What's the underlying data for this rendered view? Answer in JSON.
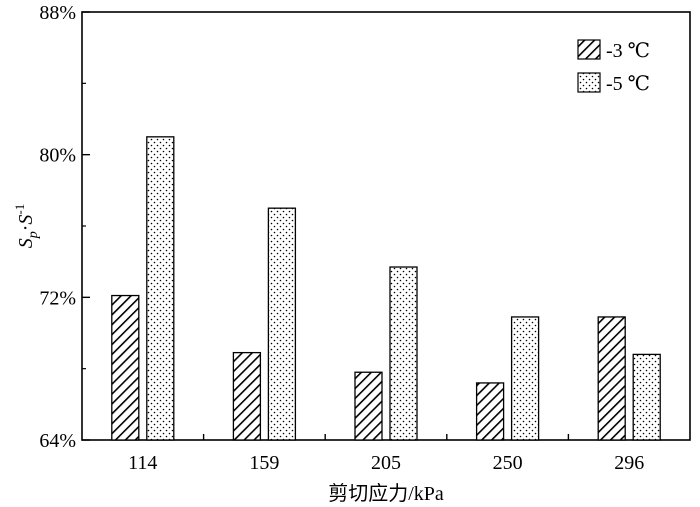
{
  "chart_data": {
    "type": "bar",
    "categories": [
      "114",
      "159",
      "205",
      "250",
      "296"
    ],
    "series": [
      {
        "name": "-3 ℃",
        "values": [
          72.1,
          68.9,
          67.8,
          67.2,
          70.9
        ],
        "pattern": "diagonal-hatch"
      },
      {
        "name": "-5 ℃",
        "values": [
          81.0,
          77.0,
          73.7,
          70.9,
          68.8
        ],
        "pattern": "dots"
      }
    ],
    "xlabel": "剪切应力/kPa",
    "ylabel_main": "S",
    "ylabel_sub": "p",
    "ylabel_sep": "·",
    "ylabel_tail": "S",
    "ylabel_sup": "-1",
    "ylim": [
      64,
      88
    ],
    "yticks": [
      "64%",
      "72%",
      "80%",
      "88%"
    ],
    "legend_position": "top-right",
    "grid": false
  }
}
